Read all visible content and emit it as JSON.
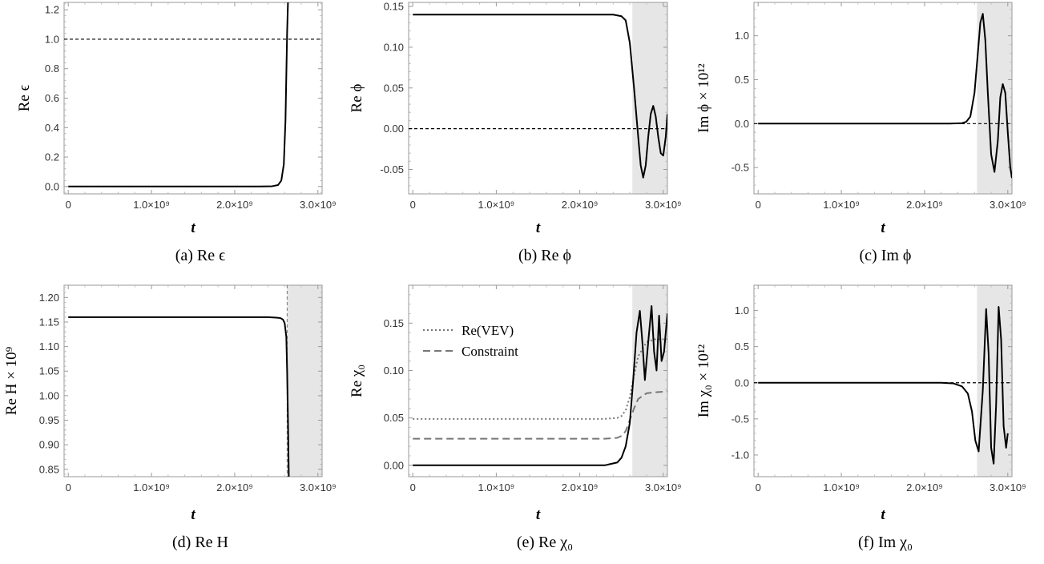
{
  "chart_data": [
    {
      "id": "a",
      "type": "line",
      "caption": "(a) Re ϵ",
      "xlabel": "t",
      "ylabel": "Re ϵ",
      "xlim": [
        -50000000.0,
        3050000000.0
      ],
      "ylim": [
        -0.05,
        1.25
      ],
      "xticks": [
        0,
        1000000000.0,
        2000000000.0,
        3000000000.0
      ],
      "xtick_labels": [
        "0",
        "1.0×10⁹",
        "2.0×10⁹",
        "3.0×10⁹"
      ],
      "yticks": [
        0,
        0.2,
        0.4,
        0.6,
        0.8,
        1.0,
        1.2
      ],
      "ytick_labels": [
        "0.0",
        "0.2",
        "0.4",
        "0.6",
        "0.8",
        "1.0",
        "1.2"
      ],
      "hlines": [
        1.0
      ],
      "shade": null,
      "series": [
        {
          "style": "solid",
          "color": "#000000",
          "x": [
            0,
            2300000000.0,
            2450000000.0,
            2520000000.0,
            2560000000.0,
            2590000000.0,
            2610000000.0,
            2620000000.0,
            2630000000.0,
            2640000000.0
          ],
          "y": [
            0,
            0,
            0.002,
            0.01,
            0.04,
            0.15,
            0.45,
            0.75,
            1.05,
            1.25
          ]
        }
      ]
    },
    {
      "id": "b",
      "type": "line",
      "caption": "(b) Re ϕ",
      "xlabel": "t",
      "ylabel": "Re ϕ",
      "xlim": [
        -50000000.0,
        3050000000.0
      ],
      "ylim": [
        -0.08,
        0.155
      ],
      "xticks": [
        0,
        1000000000.0,
        2000000000.0,
        3000000000.0
      ],
      "xtick_labels": [
        "0",
        "1.0×10⁹",
        "2.0×10⁹",
        "3.0×10⁹"
      ],
      "yticks": [
        -0.05,
        0,
        0.05,
        0.1,
        0.15
      ],
      "ytick_labels": [
        "-0.05",
        "0.00",
        "0.05",
        "0.10",
        "0.15"
      ],
      "hlines": [
        0
      ],
      "shade": [
        2630000000.0,
        3050000000.0
      ],
      "series": [
        {
          "style": "solid",
          "color": "#000000",
          "x": [
            0,
            2300000000.0,
            2400000000.0,
            2450000000.0,
            2500000000.0,
            2550000000.0,
            2600000000.0,
            2650000000.0,
            2700000000.0,
            2730000000.0,
            2760000000.0,
            2790000000.0,
            2820000000.0,
            2850000000.0,
            2880000000.0,
            2910000000.0,
            2940000000.0,
            2970000000.0,
            3000000000.0,
            3030000000.0,
            3050000000.0
          ],
          "y": [
            0.14,
            0.14,
            0.14,
            0.139,
            0.138,
            0.133,
            0.105,
            0.05,
            -0.01,
            -0.045,
            -0.06,
            -0.045,
            -0.01,
            0.018,
            0.028,
            0.015,
            -0.01,
            -0.03,
            -0.033,
            -0.01,
            0.018
          ]
        }
      ]
    },
    {
      "id": "c",
      "type": "line",
      "caption": "(c) Im ϕ",
      "xlabel": "t",
      "ylabel": "Im ϕ × 10¹²",
      "xlim": [
        -50000000.0,
        3050000000.0
      ],
      "ylim": [
        -0.8,
        1.38
      ],
      "xticks": [
        0,
        1000000000.0,
        2000000000.0,
        3000000000.0
      ],
      "xtick_labels": [
        "0",
        "1.0×10⁹",
        "2.0×10⁹",
        "3.0×10⁹"
      ],
      "yticks": [
        -0.5,
        0,
        0.5,
        1.0
      ],
      "ytick_labels": [
        "-0.5",
        "0.0",
        "0.5",
        "1.0"
      ],
      "hlines": [
        0
      ],
      "shade": [
        2630000000.0,
        3050000000.0
      ],
      "series": [
        {
          "style": "solid",
          "color": "#000000",
          "x": [
            0,
            2300000000.0,
            2450000000.0,
            2500000000.0,
            2550000000.0,
            2600000000.0,
            2640000000.0,
            2670000000.0,
            2700000000.0,
            2730000000.0,
            2760000000.0,
            2800000000.0,
            2840000000.0,
            2880000000.0,
            2910000000.0,
            2940000000.0,
            2970000000.0,
            3000000000.0,
            3030000000.0,
            3050000000.0
          ],
          "y": [
            0,
            0,
            0.005,
            0.02,
            0.08,
            0.35,
            0.8,
            1.15,
            1.25,
            0.95,
            0.35,
            -0.35,
            -0.55,
            -0.2,
            0.3,
            0.45,
            0.35,
            -0.1,
            -0.5,
            -0.62
          ]
        }
      ]
    },
    {
      "id": "d",
      "type": "line",
      "caption": "(d) Re H",
      "xlabel": "t",
      "ylabel": "Re H × 10⁹",
      "xlim": [
        -50000000.0,
        3050000000.0
      ],
      "ylim": [
        0.835,
        1.225
      ],
      "xticks": [
        0,
        1000000000.0,
        2000000000.0,
        3000000000.0
      ],
      "xtick_labels": [
        "0",
        "1.0×10⁹",
        "2.0×10⁹",
        "3.0×10⁹"
      ],
      "yticks": [
        0.85,
        0.9,
        0.95,
        1.0,
        1.05,
        1.1,
        1.15,
        1.2
      ],
      "ytick_labels": [
        "0.85",
        "0.90",
        "0.95",
        "1.00",
        "1.05",
        "1.10",
        "1.15",
        "1.20"
      ],
      "hlines": [],
      "vline": 2630000000.0,
      "shade": [
        2630000000.0,
        3050000000.0
      ],
      "series": [
        {
          "style": "solid",
          "color": "#000000",
          "x": [
            0,
            2400000000.0,
            2500000000.0,
            2550000000.0,
            2580000000.0,
            2600000000.0,
            2620000000.0,
            2630000000.0,
            2640000000.0,
            2650000000.0
          ],
          "y": [
            1.16,
            1.16,
            1.159,
            1.158,
            1.155,
            1.148,
            1.12,
            1.05,
            0.95,
            0.835
          ]
        }
      ]
    },
    {
      "id": "e",
      "type": "line",
      "caption": "(e) Re χ₀",
      "xlabel": "t",
      "ylabel": "Re χ₀",
      "xlim": [
        -50000000.0,
        3050000000.0
      ],
      "ylim": [
        -0.012,
        0.19
      ],
      "xticks": [
        0,
        1000000000.0,
        2000000000.0,
        3000000000.0
      ],
      "xtick_labels": [
        "0",
        "1.0×10⁹",
        "2.0×10⁹",
        "3.0×10⁹"
      ],
      "yticks": [
        0,
        0.05,
        0.1,
        0.15
      ],
      "ytick_labels": [
        "0.00",
        "0.05",
        "0.10",
        "0.15"
      ],
      "hlines": [],
      "shade": [
        2630000000.0,
        3050000000.0
      ],
      "legend": [
        "Re(VEV)",
        "Constraint"
      ],
      "series": [
        {
          "name": "Re(VEV)",
          "style": "dotted",
          "color": "#777777",
          "x": [
            0,
            2300000000.0,
            2450000000.0,
            2500000000.0,
            2550000000.0,
            2600000000.0,
            2650000000.0,
            2700000000.0,
            2800000000.0,
            2900000000.0,
            3050000000.0
          ],
          "y": [
            0.049,
            0.049,
            0.05,
            0.052,
            0.058,
            0.072,
            0.095,
            0.115,
            0.13,
            0.133,
            0.133
          ]
        },
        {
          "name": "Constraint",
          "style": "dashed",
          "color": "#777777",
          "x": [
            0,
            2300000000.0,
            2450000000.0,
            2500000000.0,
            2550000000.0,
            2600000000.0,
            2650000000.0,
            2700000000.0,
            2800000000.0,
            2900000000.0,
            3050000000.0
          ],
          "y": [
            0.028,
            0.028,
            0.029,
            0.031,
            0.036,
            0.048,
            0.06,
            0.07,
            0.076,
            0.077,
            0.078
          ]
        },
        {
          "style": "solid",
          "color": "#000000",
          "x": [
            0,
            2300000000.0,
            2450000000.0,
            2500000000.0,
            2550000000.0,
            2600000000.0,
            2640000000.0,
            2680000000.0,
            2720000000.0,
            2750000000.0,
            2780000000.0,
            2820000000.0,
            2860000000.0,
            2890000000.0,
            2920000000.0,
            2950000000.0,
            2980000000.0,
            3010000000.0,
            3050000000.0
          ],
          "y": [
            0,
            0,
            0.003,
            0.008,
            0.02,
            0.045,
            0.09,
            0.14,
            0.163,
            0.13,
            0.09,
            0.13,
            0.168,
            0.12,
            0.1,
            0.158,
            0.11,
            0.12,
            0.16
          ]
        }
      ]
    },
    {
      "id": "f",
      "type": "line",
      "caption": "(f) Im χ₀",
      "xlabel": "t",
      "ylabel": "Im χ₀ × 10¹²",
      "xlim": [
        -50000000.0,
        3050000000.0
      ],
      "ylim": [
        -1.3,
        1.35
      ],
      "xticks": [
        0,
        1000000000.0,
        2000000000.0,
        3000000000.0
      ],
      "xtick_labels": [
        "0",
        "1.0×10⁹",
        "2.0×10⁹",
        "3.0×10⁹"
      ],
      "yticks": [
        -1.0,
        -0.5,
        0,
        0.5,
        1.0
      ],
      "ytick_labels": [
        "-1.0",
        "-0.5",
        "0.0",
        "0.5",
        "1.0"
      ],
      "hlines": [
        0
      ],
      "shade": [
        2630000000.0,
        3050000000.0
      ],
      "series": [
        {
          "style": "solid",
          "color": "#000000",
          "x": [
            0,
            2200000000.0,
            2350000000.0,
            2450000000.0,
            2520000000.0,
            2570000000.0,
            2610000000.0,
            2650000000.0,
            2700000000.0,
            2740000000.0,
            2770000000.0,
            2800000000.0,
            2830000000.0,
            2860000000.0,
            2890000000.0,
            2920000000.0,
            2950000000.0,
            2980000000.0,
            3000000000.0
          ],
          "y": [
            0,
            0,
            -0.01,
            -0.05,
            -0.15,
            -0.4,
            -0.8,
            -0.95,
            -0.1,
            1.02,
            0.4,
            -0.9,
            -1.12,
            -0.3,
            1.05,
            0.6,
            -0.6,
            -0.9,
            -0.7
          ]
        }
      ]
    }
  ]
}
